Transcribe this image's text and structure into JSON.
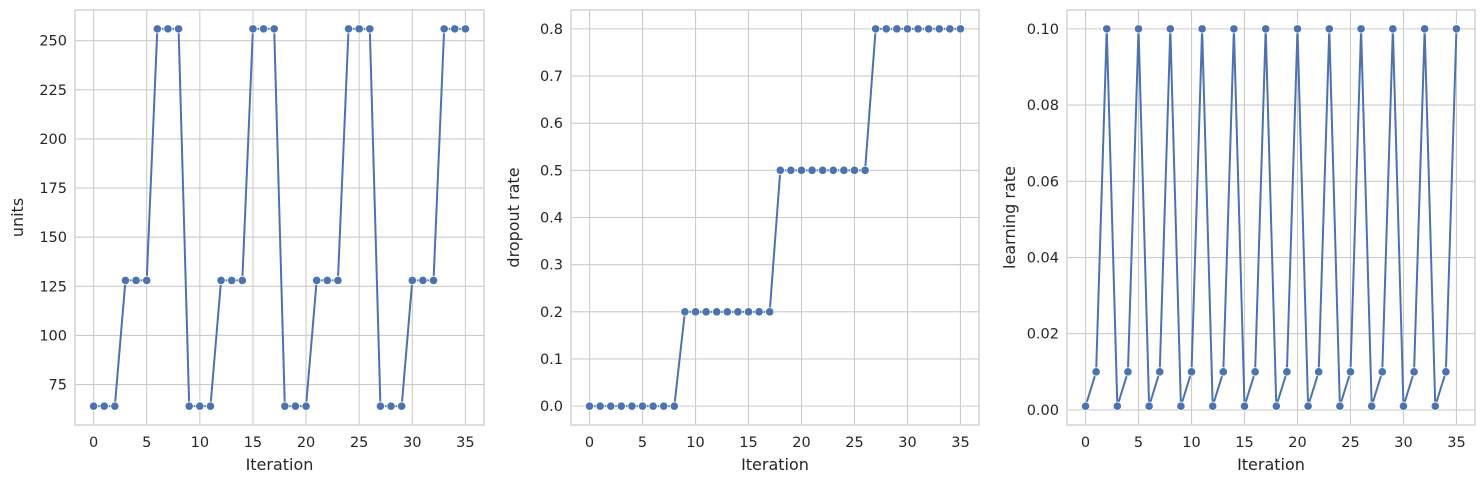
{
  "theme": {
    "line_color": "#4c72b0",
    "grid_color": "#cccccc",
    "text_color": "#262626",
    "background": "#ffffff"
  },
  "chart_data": [
    {
      "type": "line",
      "title": "",
      "xlabel": "Iteration",
      "ylabel": "units",
      "xlim": [
        -1.75,
        36.75
      ],
      "ylim": [
        54.4,
        265.6
      ],
      "xticks": [
        0,
        5,
        10,
        15,
        20,
        25,
        30,
        35
      ],
      "xtick_labels": [
        "0",
        "5",
        "10",
        "15",
        "20",
        "25",
        "30",
        "35"
      ],
      "yticks": [
        75,
        100,
        125,
        150,
        175,
        200,
        225,
        250
      ],
      "ytick_labels": [
        "75",
        "100",
        "125",
        "150",
        "175",
        "200",
        "225",
        "250"
      ],
      "grid": true,
      "marker": "circle",
      "x": [
        0,
        1,
        2,
        3,
        4,
        5,
        6,
        7,
        8,
        9,
        10,
        11,
        12,
        13,
        14,
        15,
        16,
        17,
        18,
        19,
        20,
        21,
        22,
        23,
        24,
        25,
        26,
        27,
        28,
        29,
        30,
        31,
        32,
        33,
        34,
        35
      ],
      "y": [
        64,
        64,
        64,
        128,
        128,
        128,
        256,
        256,
        256,
        64,
        64,
        64,
        128,
        128,
        128,
        256,
        256,
        256,
        64,
        64,
        64,
        128,
        128,
        128,
        256,
        256,
        256,
        64,
        64,
        64,
        128,
        128,
        128,
        256,
        256,
        256
      ]
    },
    {
      "type": "line",
      "title": "",
      "xlabel": "Iteration",
      "ylabel": "dropout rate",
      "xlim": [
        -1.75,
        36.75
      ],
      "ylim": [
        -0.04,
        0.84
      ],
      "xticks": [
        0,
        5,
        10,
        15,
        20,
        25,
        30,
        35
      ],
      "xtick_labels": [
        "0",
        "5",
        "10",
        "15",
        "20",
        "25",
        "30",
        "35"
      ],
      "yticks": [
        0.0,
        0.1,
        0.2,
        0.3,
        0.4,
        0.5,
        0.6,
        0.7,
        0.8
      ],
      "ytick_labels": [
        "0.0",
        "0.1",
        "0.2",
        "0.3",
        "0.4",
        "0.5",
        "0.6",
        "0.7",
        "0.8"
      ],
      "grid": true,
      "marker": "circle",
      "x": [
        0,
        1,
        2,
        3,
        4,
        5,
        6,
        7,
        8,
        9,
        10,
        11,
        12,
        13,
        14,
        15,
        16,
        17,
        18,
        19,
        20,
        21,
        22,
        23,
        24,
        25,
        26,
        27,
        28,
        29,
        30,
        31,
        32,
        33,
        34,
        35
      ],
      "y": [
        0,
        0,
        0,
        0,
        0,
        0,
        0,
        0,
        0,
        0.2,
        0.2,
        0.2,
        0.2,
        0.2,
        0.2,
        0.2,
        0.2,
        0.2,
        0.5,
        0.5,
        0.5,
        0.5,
        0.5,
        0.5,
        0.5,
        0.5,
        0.5,
        0.8,
        0.8,
        0.8,
        0.8,
        0.8,
        0.8,
        0.8,
        0.8,
        0.8
      ]
    },
    {
      "type": "line",
      "title": "",
      "xlabel": "Iteration",
      "ylabel": "learning rate",
      "xlim": [
        -1.75,
        36.75
      ],
      "ylim": [
        -0.00395,
        0.10495
      ],
      "xticks": [
        0,
        5,
        10,
        15,
        20,
        25,
        30,
        35
      ],
      "xtick_labels": [
        "0",
        "5",
        "10",
        "15",
        "20",
        "25",
        "30",
        "35"
      ],
      "yticks": [
        0.0,
        0.02,
        0.04,
        0.06,
        0.08,
        0.1
      ],
      "ytick_labels": [
        "0.00",
        "0.02",
        "0.04",
        "0.06",
        "0.08",
        "0.10"
      ],
      "grid": true,
      "marker": "circle",
      "x": [
        0,
        1,
        2,
        3,
        4,
        5,
        6,
        7,
        8,
        9,
        10,
        11,
        12,
        13,
        14,
        15,
        16,
        17,
        18,
        19,
        20,
        21,
        22,
        23,
        24,
        25,
        26,
        27,
        28,
        29,
        30,
        31,
        32,
        33,
        34,
        35
      ],
      "y": [
        0.001,
        0.01,
        0.1,
        0.001,
        0.01,
        0.1,
        0.001,
        0.01,
        0.1,
        0.001,
        0.01,
        0.1,
        0.001,
        0.01,
        0.1,
        0.001,
        0.01,
        0.1,
        0.001,
        0.01,
        0.1,
        0.001,
        0.01,
        0.1,
        0.001,
        0.01,
        0.1,
        0.001,
        0.01,
        0.1,
        0.001,
        0.01,
        0.1,
        0.001,
        0.01,
        0.1
      ]
    }
  ]
}
